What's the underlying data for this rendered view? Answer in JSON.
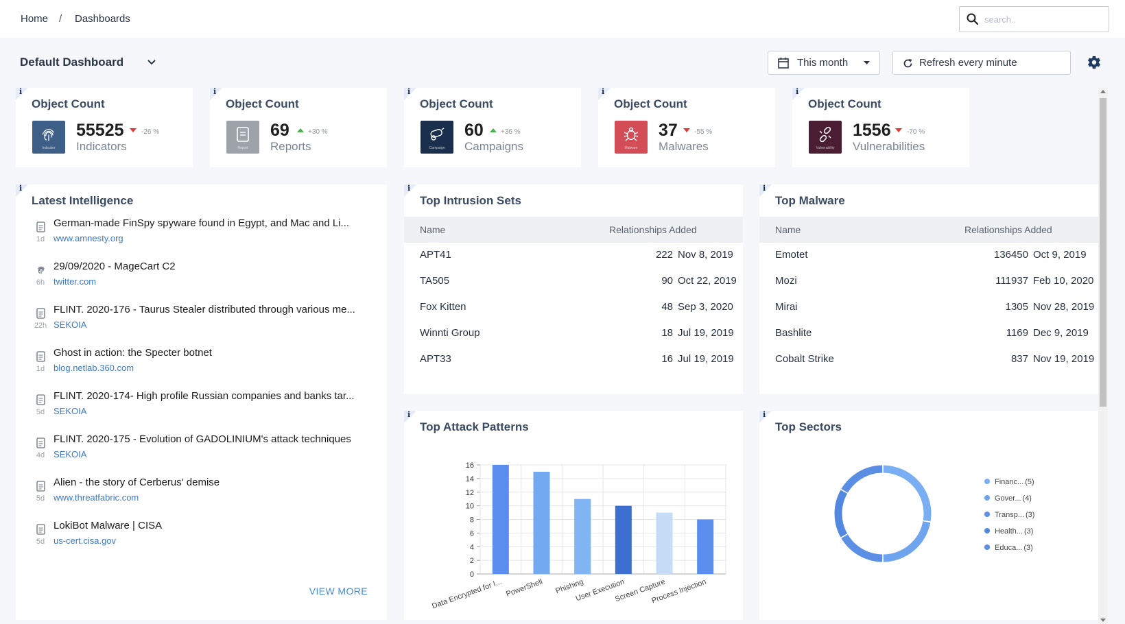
{
  "breadcrumb": {
    "home": "Home",
    "separator": "/",
    "current": "Dashboards"
  },
  "search": {
    "placeholder": "search.."
  },
  "toolbar": {
    "dashboard_name": "Default Dashboard",
    "period": "This month",
    "refresh": "Refresh every minute"
  },
  "info_mark": "i",
  "stats": [
    {
      "title": "Object Count",
      "count": "55525",
      "trend": "-26 %",
      "direction": "down",
      "kind": "Indicators",
      "icon": "fingerprint-icon",
      "icon_caption": "Indicator",
      "color": "#3d5f87"
    },
    {
      "title": "Object Count",
      "count": "69",
      "trend": "+30 %",
      "direction": "up",
      "kind": "Reports",
      "icon": "report-icon",
      "icon_caption": "Report",
      "color": "#9ea3a9"
    },
    {
      "title": "Object Count",
      "count": "60",
      "trend": "+36 %",
      "direction": "up",
      "kind": "Campaigns",
      "icon": "campaign-icon",
      "icon_caption": "Campaign",
      "color": "#1a2f4e"
    },
    {
      "title": "Object Count",
      "count": "37",
      "trend": "-55 %",
      "direction": "down",
      "kind": "Malwares",
      "icon": "malware-icon",
      "icon_caption": "Malware",
      "color": "#d24d56"
    },
    {
      "title": "Object Count",
      "count": "1556",
      "trend": "-70 %",
      "direction": "down",
      "kind": "Vulnerabilities",
      "icon": "vulnerability-icon",
      "icon_caption": "Vulnerability",
      "color": "#4a1d33"
    }
  ],
  "trend_colors": {
    "up": "#4caf50",
    "down": "#e53935"
  },
  "latest": {
    "title": "Latest Intelligence",
    "items": [
      {
        "title": "German-made FinSpy spyware found in Egypt, and Mac and Li...",
        "age": "1d",
        "source": "www.amnesty.org",
        "icon": "document-icon"
      },
      {
        "title": "29/09/2020 - MageCart C2",
        "age": "6h",
        "source": "twitter.com",
        "icon": "fingerprint-icon"
      },
      {
        "title": "FLINT. 2020-176 - Taurus Stealer distributed through various me...",
        "age": "22h",
        "source": "SEKOIA",
        "icon": "document-icon"
      },
      {
        "title": "Ghost in action: the Specter botnet",
        "age": "1d",
        "source": "blog.netlab.360.com",
        "icon": "document-icon"
      },
      {
        "title": "FLINT. 2020-174- High profile Russian companies and banks tar...",
        "age": "5d",
        "source": "SEKOIA",
        "icon": "document-icon"
      },
      {
        "title": "FLINT. 2020-175 - Evolution of GADOLINIUM's attack techniques",
        "age": "4d",
        "source": "SEKOIA",
        "icon": "document-icon"
      },
      {
        "title": "Alien - the story of Cerberus' demise",
        "age": "5d",
        "source": "www.threatfabric.com",
        "icon": "document-icon"
      },
      {
        "title": "LokiBot Malware | CISA",
        "age": "5d",
        "source": "us-cert.cisa.gov",
        "icon": "document-icon"
      }
    ],
    "view_more": "VIEW MORE"
  },
  "intrusion_sets": {
    "title": "Top Intrusion Sets",
    "col_name": "Name",
    "col_rel": "Relationships Added",
    "rows": [
      {
        "name": "APT41",
        "count": "222",
        "date": "Nov 8, 2019"
      },
      {
        "name": "TA505",
        "count": "90",
        "date": "Oct 22, 2019"
      },
      {
        "name": "Fox Kitten",
        "count": "48",
        "date": "Sep 3, 2020"
      },
      {
        "name": "Winnti Group",
        "count": "18",
        "date": "Jul 19, 2019"
      },
      {
        "name": "APT33",
        "count": "16",
        "date": "Jul 19, 2019"
      }
    ]
  },
  "malware": {
    "title": "Top Malware",
    "col_name": "Name",
    "col_rel": "Relationships Added",
    "rows": [
      {
        "name": "Emotet",
        "count": "136450",
        "date": "Oct 9, 2019"
      },
      {
        "name": "Mozi",
        "count": "111937",
        "date": "Feb 10, 2020"
      },
      {
        "name": "Mirai",
        "count": "1305",
        "date": "Nov 28, 2019"
      },
      {
        "name": "Bashlite",
        "count": "1169",
        "date": "Dec 9, 2019"
      },
      {
        "name": "Cobalt Strike",
        "count": "837",
        "date": "Nov 19, 2019"
      }
    ]
  },
  "attack_patterns": {
    "title": "Top Attack Patterns"
  },
  "sectors": {
    "title": "Top Sectors"
  },
  "chart_data": [
    {
      "type": "bar",
      "categories": [
        "Data Encrypted for I...",
        "PowerShell",
        "Phishing",
        "User Execution",
        "Screen Capture",
        "Process Injection"
      ],
      "values": [
        16,
        15,
        11,
        10,
        9,
        8
      ],
      "colors": [
        "#5b8def",
        "#73a9f0",
        "#80b4f3",
        "#3d6fd1",
        "#c6dcf6",
        "#5b8def"
      ],
      "ylim": [
        0,
        16
      ],
      "yticks": [
        0,
        2,
        4,
        6,
        8,
        10,
        12,
        14,
        16
      ],
      "grid": true
    },
    {
      "type": "pie",
      "donut": true,
      "categories": [
        "Financ...",
        "Gover...",
        "Transp...",
        "Health...",
        "Educa..."
      ],
      "values": [
        5,
        4,
        3,
        3,
        3
      ],
      "legend_values": [
        "(5)",
        "(4)",
        "(3)",
        "(3)",
        "(3)"
      ],
      "colors": [
        "#79aef2",
        "#6ea3ee",
        "#5b8fe6",
        "#5288e0",
        "#5a8de4"
      ],
      "legend": "right"
    }
  ]
}
